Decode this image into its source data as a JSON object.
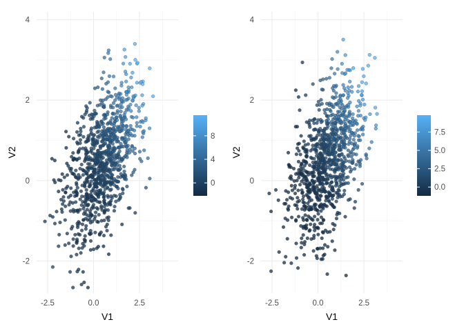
{
  "chart_data": [
    {
      "type": "scatter",
      "panel": "left",
      "title": "",
      "xlabel": "V1",
      "ylabel": "V2",
      "xlim": [
        -3.1,
        4.6
      ],
      "ylim": [
        -2.8,
        4.2
      ],
      "xticks": [
        -2.5,
        0.0,
        2.5
      ],
      "xtick_labels": [
        "-2.5",
        "0.0",
        "2.5"
      ],
      "yticks": [
        -2,
        0,
        2,
        4
      ],
      "ytick_labels": [
        "-2",
        "0",
        "2",
        "4"
      ],
      "grid": true,
      "color_scale": {
        "low_color": "#132B43",
        "high_color": "#56B1F7",
        "range": [
          -2.2,
          11.5
        ],
        "ticks": [
          0,
          4,
          8
        ],
        "tick_labels": [
          "0",
          "4",
          "8"
        ],
        "legend_position": "right"
      },
      "points": {
        "n": 1000,
        "x_mean": 0.5,
        "x_sd": 1.0,
        "y_mean": 0.5,
        "y_sd": 1.0,
        "correlation": 0.5
      }
    },
    {
      "type": "scatter",
      "panel": "right",
      "title": "",
      "xlabel": "V1",
      "ylabel": "V2",
      "xlim": [
        -3.1,
        4.6
      ],
      "ylim": [
        -2.8,
        4.2
      ],
      "xticks": [
        -2.5,
        0.0,
        2.5
      ],
      "xtick_labels": [
        "-2.5",
        "0.0",
        "2.5"
      ],
      "yticks": [
        -2,
        0,
        2,
        4
      ],
      "ytick_labels": [
        "-2",
        "0",
        "2",
        "4"
      ],
      "grid": true,
      "color_scale": {
        "low_color": "#132B43",
        "high_color": "#56B1F7",
        "range": [
          -1.2,
          9.8
        ],
        "ticks": [
          0.0,
          2.5,
          5.0,
          7.5
        ],
        "tick_labels": [
          "0.0",
          "2.5",
          "5.0",
          "7.5"
        ],
        "legend_position": "right"
      },
      "points": {
        "n": 1000,
        "x_mean": 0.5,
        "x_sd": 1.0,
        "y_mean": 0.5,
        "y_sd": 1.0,
        "correlation": 0.5
      }
    }
  ]
}
